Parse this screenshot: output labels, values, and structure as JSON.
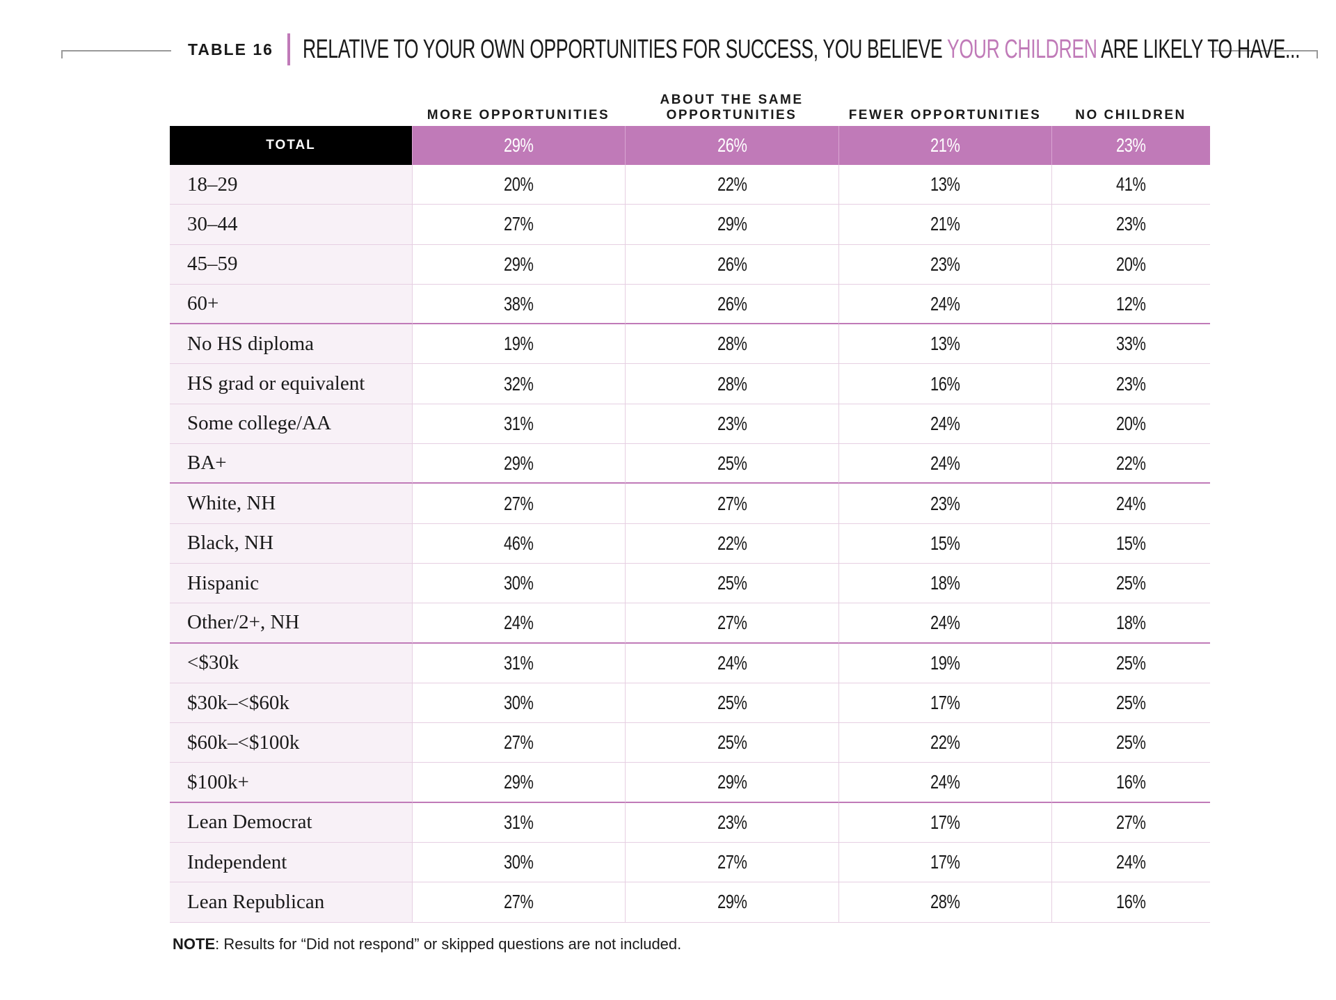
{
  "header": {
    "label": "TABLE 16",
    "title": {
      "before": "RELATIVE TO YOUR OWN OPPORTUNITIES FOR SUCCESS, YOU BELIEVE ",
      "highlight": "YOUR CHILDREN",
      "after": " ARE LIKELY TO HAVE..."
    }
  },
  "table": {
    "columns": [
      "MORE OPPORTUNITIES",
      "ABOUT THE SAME OPPORTUNITIES",
      "FEWER OPPORTUNITIES",
      "NO CHILDREN"
    ],
    "total": [
      "TOTAL",
      "29%",
      "26%",
      "21%",
      "23%"
    ],
    "rows": [
      [
        "18–29",
        "20%",
        "22%",
        "13%",
        "41%"
      ],
      [
        "30–44",
        "27%",
        "29%",
        "21%",
        "23%"
      ],
      [
        "45–59",
        "29%",
        "26%",
        "23%",
        "20%"
      ],
      [
        "60+",
        "38%",
        "26%",
        "24%",
        "12%"
      ],
      [
        "No HS diploma",
        "19%",
        "28%",
        "13%",
        "33%"
      ],
      [
        "HS grad or equivalent",
        "32%",
        "28%",
        "16%",
        "23%"
      ],
      [
        "Some college/AA",
        "31%",
        "23%",
        "24%",
        "20%"
      ],
      [
        "BA+",
        "29%",
        "25%",
        "24%",
        "22%"
      ],
      [
        "White, NH",
        "27%",
        "27%",
        "23%",
        "24%"
      ],
      [
        "Black, NH",
        "46%",
        "22%",
        "15%",
        "15%"
      ],
      [
        "Hispanic",
        "30%",
        "25%",
        "18%",
        "25%"
      ],
      [
        "Other/2+, NH",
        "24%",
        "27%",
        "24%",
        "18%"
      ],
      [
        "<$30k",
        "31%",
        "24%",
        "19%",
        "25%"
      ],
      [
        "$30k–<$60k",
        "30%",
        "25%",
        "17%",
        "25%"
      ],
      [
        "$60k–<$100k",
        "27%",
        "25%",
        "22%",
        "25%"
      ],
      [
        "$100k+",
        "29%",
        "29%",
        "24%",
        "16%"
      ],
      [
        "Lean Democrat",
        "31%",
        "23%",
        "17%",
        "27%"
      ],
      [
        "Independent",
        "30%",
        "27%",
        "17%",
        "24%"
      ],
      [
        "Lean Republican",
        "27%",
        "29%",
        "28%",
        "16%"
      ]
    ]
  },
  "note": {
    "label": "NOTE",
    "text": ": Results for “Did not respond” or skipped questions are not included."
  }
}
